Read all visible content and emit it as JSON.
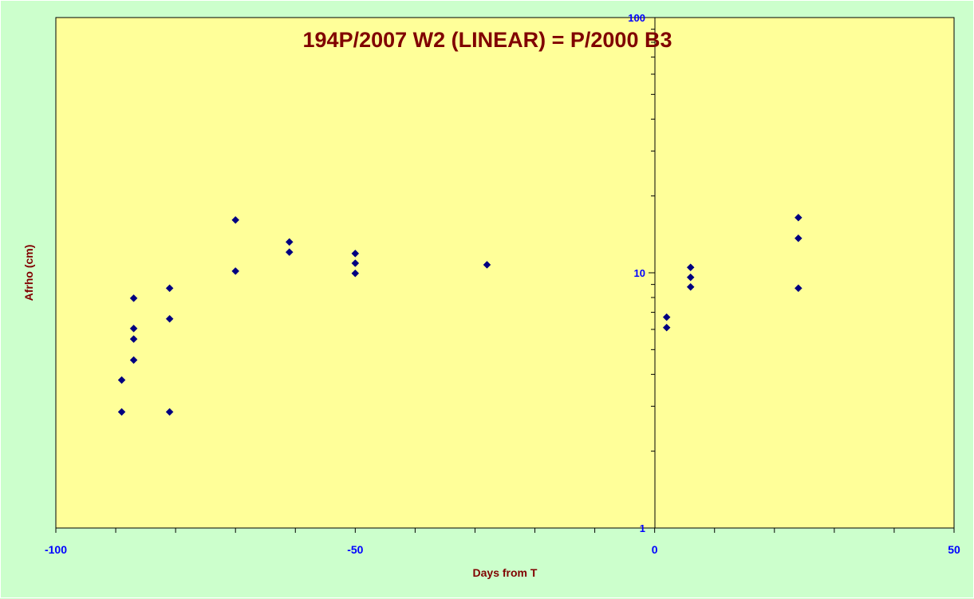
{
  "chart_data": {
    "type": "scatter",
    "title": "194P/2007 W2 (LINEAR) = P/2000 B3",
    "xlabel": "Days from T",
    "ylabel": "Afrho (cm)",
    "xlim": [
      -100,
      50
    ],
    "ylim": [
      1,
      100
    ],
    "y_scale": "log",
    "x_ticks": [
      "-100",
      "-50",
      "0",
      "50"
    ],
    "y_ticks": [
      "1",
      "10",
      "100"
    ],
    "grid": false,
    "legend": "none",
    "colors": {
      "plot_background": "#ffff99",
      "outer_background": "#ccffcc",
      "marker": "#000080",
      "title": "#800000",
      "tick_labels": "#0000ff"
    },
    "series": [
      {
        "x": [
          -89,
          -89,
          -87,
          -87,
          -87,
          -87,
          -81,
          -81,
          -81,
          -70,
          -70,
          -61,
          -61,
          -50,
          -50,
          -50,
          -28,
          2,
          2,
          6,
          6,
          6,
          24,
          24,
          24
        ],
        "y": [
          2.85,
          3.8,
          4.55,
          5.5,
          6.05,
          7.95,
          2.85,
          6.6,
          8.7,
          10.15,
          16.1,
          13.2,
          12.05,
          11.9,
          10.9,
          9.95,
          10.75,
          6.7,
          6.1,
          10.5,
          9.6,
          8.8,
          16.45,
          13.65,
          8.7
        ]
      }
    ]
  }
}
